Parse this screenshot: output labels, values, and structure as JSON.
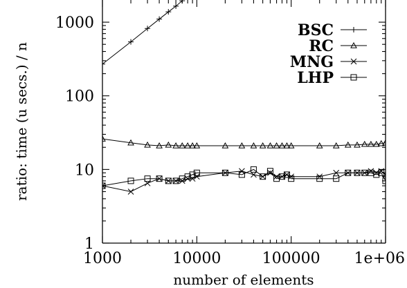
{
  "chart_data": {
    "type": "line",
    "xscale": "log",
    "yscale": "log",
    "xlim": [
      1000,
      1000000
    ],
    "ylim": [
      1,
      2000
    ],
    "xlabel": "number of elements",
    "ylabel": "ratio: time (u secs.) / n",
    "x_ticks": [
      1000,
      10000,
      100000,
      1000000
    ],
    "x_tick_labels": [
      "1000",
      "10000",
      "100000",
      "1e+06"
    ],
    "y_ticks": [
      1,
      10,
      100,
      1000
    ],
    "y_tick_labels": [
      "1",
      "10",
      "100",
      "1000"
    ],
    "legend_position": "top-right",
    "grid": false,
    "series": [
      {
        "name": "BSC",
        "marker": "plus",
        "x": [
          1000,
          2000,
          3000,
          4000,
          5000,
          6000,
          7000
        ],
        "y": [
          270,
          540,
          820,
          1100,
          1380,
          1650,
          1950
        ]
      },
      {
        "name": "RC",
        "marker": "triangle",
        "x": [
          1000,
          2000,
          3000,
          4000,
          5000,
          6000,
          7000,
          8000,
          9000,
          10000,
          20000,
          30000,
          40000,
          50000,
          60000,
          70000,
          80000,
          90000,
          100000,
          200000,
          300000,
          400000,
          500000,
          600000,
          700000,
          800000,
          900000,
          1000000
        ],
        "y": [
          26,
          23,
          21.5,
          21,
          21.5,
          21,
          21,
          21,
          21,
          21,
          21,
          21,
          21,
          21,
          21,
          21,
          21,
          21,
          21,
          21,
          21,
          21.5,
          21.5,
          22,
          22,
          22,
          22.5,
          23
        ]
      },
      {
        "name": "MNG",
        "marker": "cross",
        "x": [
          1000,
          2000,
          3000,
          4000,
          5000,
          6000,
          7000,
          8000,
          9000,
          10000,
          20000,
          30000,
          40000,
          50000,
          60000,
          70000,
          80000,
          90000,
          100000,
          200000,
          300000,
          400000,
          500000,
          600000,
          700000,
          800000,
          900000,
          1000000
        ],
        "y": [
          6,
          5,
          6.5,
          7.5,
          7,
          7,
          7,
          7.5,
          7.5,
          8,
          9,
          9.5,
          8.5,
          8,
          9,
          8,
          8,
          8.5,
          8,
          8,
          9,
          9,
          9,
          9,
          9.5,
          9,
          9.5,
          8.5
        ]
      },
      {
        "name": "LHP",
        "marker": "square",
        "x": [
          1000,
          2000,
          3000,
          4000,
          5000,
          6000,
          7000,
          8000,
          9000,
          10000,
          20000,
          30000,
          40000,
          50000,
          60000,
          70000,
          80000,
          90000,
          100000,
          200000,
          300000,
          400000,
          500000,
          600000,
          700000,
          800000,
          900000,
          1000000
        ],
        "y": [
          6,
          7,
          7.5,
          7.5,
          7,
          7,
          7.5,
          8,
          8.5,
          9,
          9,
          8.5,
          10,
          8,
          9.5,
          7.5,
          8,
          8.5,
          7.5,
          7.5,
          7.5,
          9,
          9,
          9,
          9,
          8.5,
          9,
          7
        ]
      }
    ]
  }
}
